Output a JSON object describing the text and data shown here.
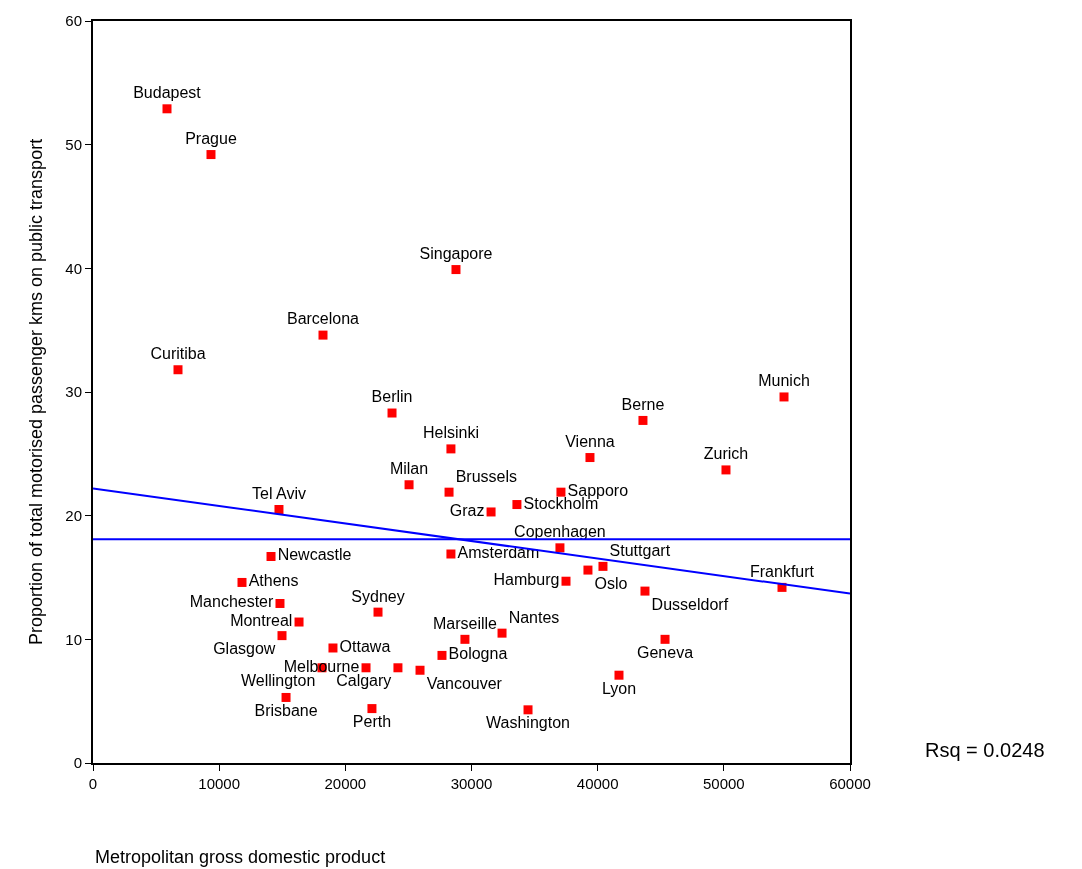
{
  "chart_data": {
    "type": "scatter",
    "xlabel": "Metropolitan gross domestic product",
    "ylabel": "Proportion of total motorised passenger kms on public transport",
    "xlim": [
      0,
      60000
    ],
    "xticks": [
      0,
      10000,
      20000,
      30000,
      40000,
      50000,
      60000
    ],
    "ylim": [
      0,
      60
    ],
    "yticks": [
      0,
      10,
      20,
      30,
      40,
      50,
      60
    ],
    "marker": "square",
    "series": [
      {
        "color": "#ff0000",
        "x": [
          5865,
          9352,
          28770,
          18230,
          6737,
          23700,
          28370,
          39390,
          43590,
          54770,
          50170,
          25050,
          28220,
          37090,
          33600,
          31550,
          14740,
          28370,
          37010,
          39230,
          40420,
          37490,
          43750,
          54610,
          45340,
          41690,
          34480,
          32420,
          14110,
          11810,
          14820,
          16330,
          14980,
          19020,
          18150,
          21640,
          24170,
          25920,
          22590,
          27660,
          29480,
          15300,
          22110
        ],
        "values": [
          52.9,
          49.2,
          39.9,
          34.6,
          31.8,
          28.3,
          25.4,
          24.7,
          27.7,
          29.6,
          23.7,
          22.5,
          21.9,
          21.9,
          20.9,
          20.3,
          20.5,
          16.9,
          17.4,
          15.6,
          15.9,
          14.7,
          13.9,
          14.2,
          10.0,
          7.1,
          4.3,
          10.5,
          16.7,
          14.6,
          12.9,
          11.4,
          10.3,
          9.3,
          7.7,
          7.7,
          7.7,
          7.5,
          12.2,
          8.7,
          10.0,
          5.3,
          4.4
        ],
        "value_labels": [
          "Budapest",
          "Prague",
          "Singapore",
          "Barcelona",
          "Curitiba",
          "Berlin",
          "Helsinki",
          "Vienna",
          "Berne",
          "Munich",
          "Zurich",
          "Milan",
          "Brussels",
          "Sapporo",
          "Stockholm",
          "Graz",
          "Tel Aviv",
          "Amsterdam",
          "Copenhagen",
          "Oslo",
          "Stuttgart",
          "Hamburg",
          "Dusseldorf",
          "Frankfurt",
          "Geneva",
          "Lyon",
          "Washington",
          "Nantes",
          "Newcastle",
          "Athens",
          "Manchester",
          "Montreal",
          "Glasgow",
          "Ottawa",
          "Wellington",
          "Melbourne",
          "Calgary",
          "Vancouver",
          "Sydney",
          "Bologna",
          "Marseille",
          "Brisbane",
          "Perth"
        ]
      },
      {
        "type": "line",
        "color": "#0000ff",
        "x": [
          0,
          60000
        ],
        "values": [
          22.2,
          13.7
        ],
        "marker": "none"
      }
    ],
    "ref_lines": [
      {
        "axis": "y",
        "value": 18.1,
        "color": "#0000ff",
        "line_style": "solid"
      }
    ],
    "annotations": [
      "Rsq = 0.0248"
    ]
  }
}
